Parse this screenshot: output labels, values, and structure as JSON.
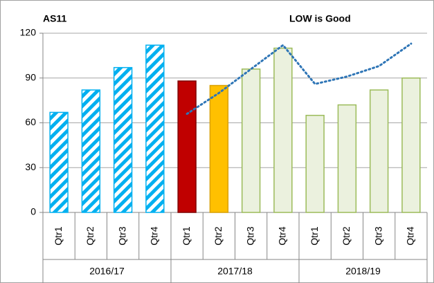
{
  "chart_data": {
    "type": "bar",
    "title": "AS11",
    "annotation": "LOW is Good",
    "categories": [
      "Qtr1",
      "Qtr2",
      "Qtr3",
      "Qtr4",
      "Qtr1",
      "Qtr2",
      "Qtr3",
      "Qtr4",
      "Qtr1",
      "Qtr2",
      "Qtr3",
      "Qtr4"
    ],
    "groups": [
      "2016/17",
      "2017/18",
      "2018/19"
    ],
    "values": [
      67,
      82,
      97,
      112,
      88,
      85,
      96,
      110,
      65,
      72,
      82,
      90
    ],
    "colors": [
      "#00b0f0",
      "#00b0f0",
      "#00b0f0",
      "#00b0f0",
      "#c00000",
      "#ffc000",
      "#ebf1de",
      "#ebf1de",
      "#ebf1de",
      "#ebf1de",
      "#ebf1de",
      "#ebf1de"
    ],
    "edge_colors": [
      "#00b0f0",
      "#00b0f0",
      "#00b0f0",
      "#00b0f0",
      "#7f0000",
      "#d9a000",
      "#9bbb59",
      "#9bbb59",
      "#9bbb59",
      "#9bbb59",
      "#9bbb59",
      "#9bbb59"
    ],
    "hatched": [
      true,
      true,
      true,
      true,
      false,
      false,
      false,
      false,
      false,
      false,
      false,
      false
    ],
    "trend": {
      "color": "#2e75b6",
      "values": [
        null,
        null,
        null,
        null,
        66,
        80,
        96,
        112,
        86,
        91,
        98,
        113
      ]
    },
    "ylim": [
      0,
      120
    ],
    "yticks": [
      0,
      30,
      60,
      90,
      120
    ],
    "grid": true
  }
}
